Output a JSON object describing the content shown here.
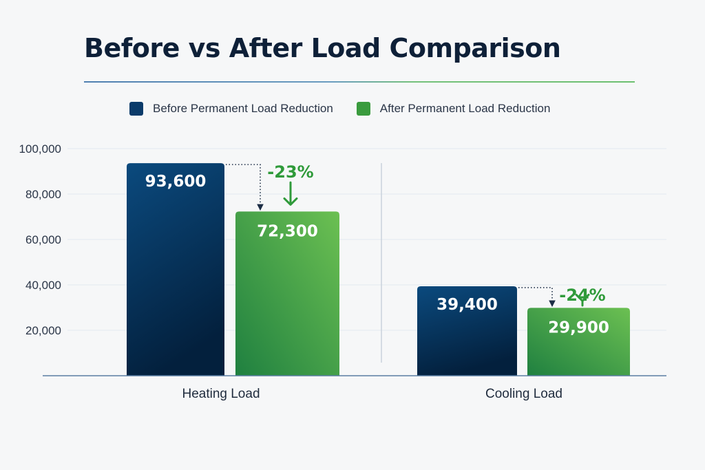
{
  "title": "Before vs After Load Comparison",
  "colors": {
    "before": "#0a3d6b",
    "before_dark": "#04213f",
    "after": "#3f9d45",
    "after_light": "#65bd55",
    "pct": "#2f9a3a",
    "title": "#0e2038"
  },
  "legend": [
    {
      "label": "Before Permanent Load Reduction",
      "color": "#0b3b6a"
    },
    {
      "label": "After Permanent Load Reduction",
      "color": "#3a9b3e"
    }
  ],
  "chart_data": {
    "type": "bar",
    "title": "Before vs After Load Comparison",
    "xlabel": "",
    "ylabel": "",
    "categories": [
      "Heating Load",
      "Cooling Load"
    ],
    "series": [
      {
        "name": "Before Permanent Load Reduction",
        "values": [
          93600,
          39400
        ],
        "labels": [
          "93,600",
          "39,400"
        ]
      },
      {
        "name": "After Permanent Load Reduction",
        "values": [
          72300,
          29900
        ],
        "labels": [
          "72,300",
          "29,900"
        ]
      }
    ],
    "changes": [
      "-23%",
      "-24%"
    ],
    "ylim": [
      0,
      100000
    ],
    "yticks": [
      20000,
      40000,
      60000,
      80000,
      100000
    ],
    "ytick_labels": [
      "20,000",
      "40,000",
      "60,000",
      "80,000",
      "100,000"
    ],
    "grid": true,
    "legend_position": "top"
  }
}
